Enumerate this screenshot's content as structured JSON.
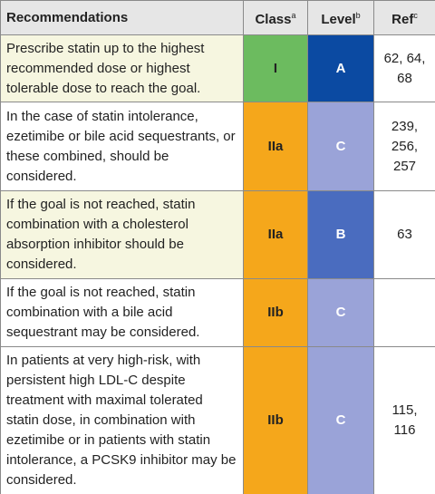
{
  "header": {
    "recommendations": "Recommendations",
    "class": {
      "label": "Class",
      "note": "a"
    },
    "level": {
      "label": "Level",
      "note": "b"
    },
    "ref": {
      "label": "Ref",
      "note": "c"
    }
  },
  "rows": [
    {
      "recommendation": "Prescribe statin up to the highest recommended dose or highest tolerable dose to reach the goal.",
      "class": "I",
      "level": "A",
      "ref": "62, 64, 68",
      "recommendation_bg": "#f6f6e0",
      "class_color": "#6cbb5f",
      "level_color": "#0b4aa2"
    },
    {
      "recommendation": "In the case of statin intolerance, ezetimibe or bile acid sequestrants, or these combined, should be considered.",
      "class": "IIa",
      "level": "C",
      "ref": "239, 256, 257",
      "recommendation_bg": "#ffffff",
      "class_color": "#f5a71b",
      "level_color": "#9aa3d8"
    },
    {
      "recommendation": "If the goal is not reached, statin combination with a cholesterol absorption inhibitor should be considered.",
      "class": "IIa",
      "level": "B",
      "ref": "63",
      "recommendation_bg": "#f6f6e0",
      "class_color": "#f5a71b",
      "level_color": "#4a6cbf"
    },
    {
      "recommendation": "If the goal is not reached, statin combination with a bile acid sequestrant may be considered.",
      "class": "IIb",
      "level": "C",
      "recommendation_bg": "#ffffff",
      "class_color": "#f5a71b",
      "level_color": "#9aa3d8"
    },
    {
      "recommendation": "In patients at very high-risk, with persistent high LDL-C despite treatment with maximal tolerated statin dose, in combination with ezetimibe or in patients with statin intolerance, a PCSK9 inhibitor may be considered.",
      "class": "IIb",
      "level": "C",
      "ref": "115, 116",
      "recommendation_bg": "#ffffff",
      "class_color": "#f5a71b",
      "level_color": "#9aa3d8"
    }
  ]
}
